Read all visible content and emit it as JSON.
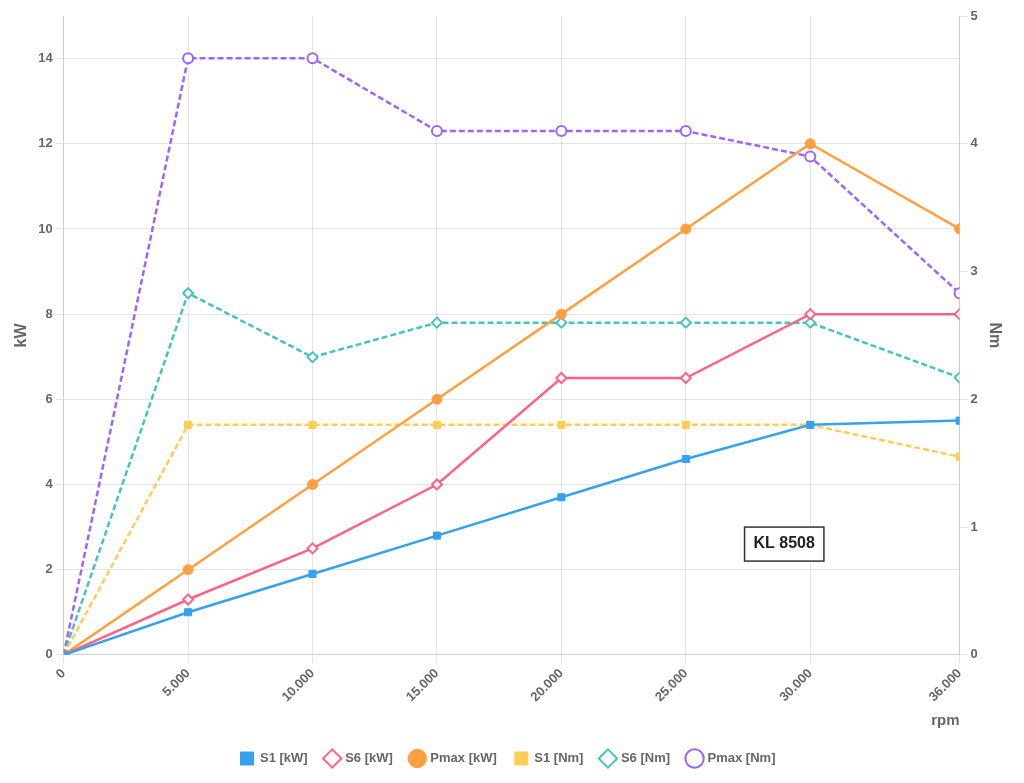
{
  "chart_data": {
    "type": "line",
    "x": [
      0,
      5000,
      10000,
      15000,
      20000,
      25000,
      30000,
      36000
    ],
    "series": [
      {
        "name": "S1 [kW]",
        "values": [
          0,
          1.0,
          1.9,
          2.8,
          3.7,
          4.6,
          5.4,
          5.5
        ],
        "marker": "square",
        "line_style": "solid"
      },
      {
        "name": "S6 [kW]",
        "values": [
          0,
          1.3,
          2.5,
          4.0,
          6.5,
          6.5,
          8.0,
          8.0
        ],
        "marker": "open-diamond",
        "line_style": "solid"
      },
      {
        "name": "Pmax [kW]",
        "values": [
          0,
          2.0,
          4.0,
          6.0,
          8.0,
          10.0,
          12.0,
          10.0
        ],
        "marker": "circle",
        "line_style": "solid"
      },
      {
        "name": "S1 [Nm]",
        "values": [
          0,
          1.8,
          1.8,
          1.8,
          1.8,
          1.8,
          1.8,
          1.55
        ],
        "marker": "square",
        "line_style": "dashed",
        "axis": "y2"
      },
      {
        "name": "S6 [Nm]",
        "values": [
          0,
          2.83,
          2.33,
          2.6,
          2.6,
          2.6,
          2.6,
          2.17
        ],
        "marker": "open-diamond",
        "line_style": "dashed",
        "axis": "y2"
      },
      {
        "name": "Pmax [Nm]",
        "values": [
          0,
          4.67,
          4.67,
          4.1,
          4.1,
          4.1,
          3.9,
          2.83
        ],
        "marker": "open-circle",
        "line_style": "dashed",
        "axis": "y2"
      }
    ],
    "xlabel": "rpm",
    "ylabel": "kW",
    "y2label": "Nm",
    "annotation": "KL 8508",
    "xlim": [
      0,
      36000
    ],
    "xticks": [
      0,
      {
        "value": 5000,
        "label": "5.000"
      },
      {
        "value": 10000,
        "label": "10.000"
      },
      {
        "value": 15000,
        "label": "15.000"
      },
      {
        "value": 20000,
        "label": "20.000"
      },
      {
        "value": 25000,
        "label": "25.000"
      },
      {
        "value": 30000,
        "label": "30.000"
      },
      {
        "value": 36000,
        "label": "36.000"
      }
    ],
    "ylim": [
      0,
      15
    ],
    "yticks": [
      0,
      2,
      4,
      6,
      8,
      10,
      12,
      14
    ],
    "y2lim": [
      0,
      5
    ],
    "y2ticks": [
      0,
      1,
      2,
      3,
      4,
      5
    ],
    "grid": true,
    "legend": "bottom"
  }
}
